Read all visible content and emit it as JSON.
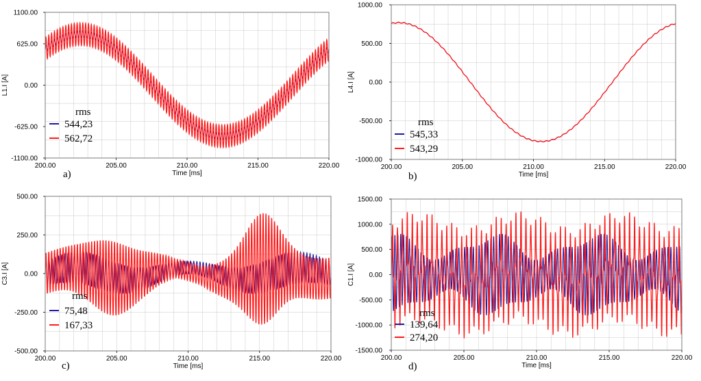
{
  "colors": {
    "blue": "#1a1a9c",
    "red": "#ff1a1a",
    "grid": "#c8c8c8",
    "frame": "#7a7a7a"
  },
  "chart_data": [
    {
      "type": "line",
      "panel_label": "a)",
      "xlabel": "Time [ms]",
      "ylabel": "L1.I [A]",
      "xlim": [
        200,
        220
      ],
      "ylim": [
        -1100,
        1100
      ],
      "xticks": [
        "200.00",
        "205.00",
        "210.00",
        "215.00",
        "220.00"
      ],
      "xtick_values": [
        200,
        205,
        210,
        215,
        220
      ],
      "yticks": [
        "1100.00",
        "625.00",
        "0.00",
        "-625.00",
        "-1100.00"
      ],
      "ytick_values": [
        1100,
        625,
        0,
        -625,
        -1100
      ],
      "grid": true,
      "legend": {
        "title": "rms",
        "position": "bottom-left"
      },
      "series": [
        {
          "name": "544,23",
          "color": "blue",
          "model": {
            "amp": 770,
            "phase_deg": 45,
            "period_ms": 20,
            "ripple_amp": 50,
            "ripple_period_ms": 0.2
          }
        },
        {
          "name": "562,72",
          "color": "red",
          "model": {
            "amp": 770,
            "phase_deg": 45,
            "period_ms": 20,
            "ripple_amp": 170,
            "ripple_period_ms": 0.2
          }
        }
      ]
    },
    {
      "type": "line",
      "panel_label": "b)",
      "xlabel": "Time [ms]",
      "ylabel": "L4.I [A]",
      "xlim": [
        200,
        220
      ],
      "ylim": [
        -1000,
        1000
      ],
      "xticks": [
        "200.00",
        "205.00",
        "210.00",
        "215.00",
        "220.00"
      ],
      "xtick_values": [
        200,
        205,
        210,
        215,
        220
      ],
      "yticks": [
        "1000.00",
        "500.00",
        "0.00",
        "-500.00",
        "-1000.00"
      ],
      "ytick_values": [
        1000,
        500,
        0,
        -500,
        -1000
      ],
      "grid": true,
      "legend": {
        "title": "rms",
        "position": "bottom-left"
      },
      "series": [
        {
          "name": "545,33",
          "color": "blue",
          "model": {
            "amp": 770,
            "phase_deg": 80,
            "period_ms": 20,
            "ripple_amp": 6,
            "ripple_period_ms": 0.4
          }
        },
        {
          "name": "543,29",
          "color": "red",
          "model": {
            "amp": 768,
            "phase_deg": 80,
            "period_ms": 20,
            "ripple_amp": 6,
            "ripple_period_ms": 0.4
          }
        }
      ]
    },
    {
      "type": "line",
      "panel_label": "c)",
      "xlabel": "Time [ms]",
      "ylabel": "C3.I [A]",
      "xlim": [
        200,
        220
      ],
      "ylim": [
        -500,
        500
      ],
      "xticks": [
        "200.00",
        "205.00",
        "210.00",
        "215.00",
        "220.00"
      ],
      "xtick_values": [
        200,
        205,
        210,
        215,
        220
      ],
      "yticks": [
        "500.00",
        "250.00",
        "0.00",
        "-250.00",
        "-500.00"
      ],
      "ytick_values": [
        500,
        250,
        0,
        -250,
        -500
      ],
      "grid": true,
      "legend": {
        "title": "rms",
        "position": "bottom-left"
      },
      "series": [
        {
          "name": "75,48",
          "color": "blue",
          "model": {
            "amp": 105,
            "phase_deg": 0,
            "period_ms": 10,
            "ripple_amp": 0,
            "ripple_period_ms": 0.2,
            "envelope": "slow"
          }
        },
        {
          "name": "167,33",
          "color": "red",
          "model": {
            "amp": 240,
            "phase_deg": 0,
            "period_ms": 10,
            "ripple_amp": 0,
            "ripple_period_ms": 0.2,
            "envelope": "beat"
          }
        }
      ]
    },
    {
      "type": "line",
      "panel_label": "d)",
      "xlabel": "Time [ms]",
      "ylabel": "C1.I [A]",
      "xlim": [
        200,
        220
      ],
      "ylim": [
        -1500,
        1500
      ],
      "xticks": [
        "200.00",
        "205.00",
        "210.00",
        "215.00",
        "220.00"
      ],
      "xtick_values": [
        200,
        205,
        210,
        215,
        220
      ],
      "yticks": [
        "1500.00",
        "1000.00",
        "500.00",
        "0.00",
        "-500.00",
        "-1000.00",
        "-1500.00"
      ],
      "ytick_values": [
        1500,
        1000,
        500,
        0,
        -500,
        -1000,
        -1500
      ],
      "grid": true,
      "legend": {
        "title": "rms",
        "position": "bottom-left"
      },
      "series": [
        {
          "name": "139,64",
          "color": "blue",
          "model": {
            "amp": 650,
            "phase_deg": 0,
            "period_ms": 7,
            "ripple_amp": 0,
            "ripple_period_ms": 0.2,
            "envelope": "wide"
          }
        },
        {
          "name": "274,20",
          "color": "red",
          "model": {
            "amp": 850,
            "phase_deg": 0,
            "period_ms": 7,
            "ripple_amp": 0,
            "ripple_period_ms": 0.34,
            "envelope": "spiky"
          }
        }
      ]
    }
  ]
}
